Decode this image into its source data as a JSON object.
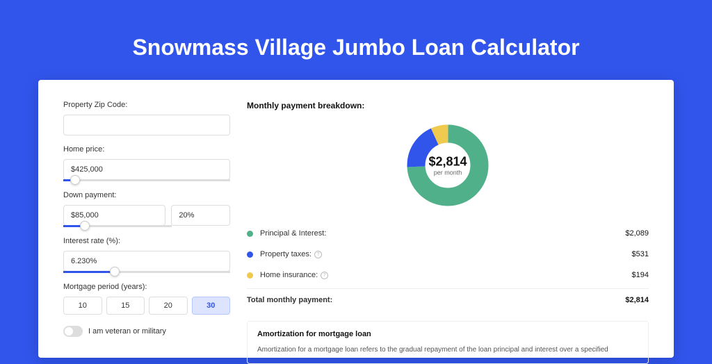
{
  "title": "Snowmass Village Jumbo Loan Calculator",
  "colors": {
    "background": "#3154eb",
    "panel": "#ffffff",
    "text": "#333333",
    "accent": "#3154eb",
    "principal": "#4fb08a",
    "taxes": "#3154eb",
    "insurance": "#f0c94f"
  },
  "form": {
    "zip_label": "Property Zip Code:",
    "zip_value": "",
    "price_label": "Home price:",
    "price_value": "$425,000",
    "price_slider_pct": 7,
    "down_label": "Down payment:",
    "down_value": "$85,000",
    "down_pct": "20%",
    "down_slider_pct": 20,
    "rate_label": "Interest rate (%):",
    "rate_value": "6.230%",
    "rate_slider_pct": 31,
    "period_label": "Mortgage period (years):",
    "periods": [
      "10",
      "15",
      "20",
      "30"
    ],
    "period_active_index": 3,
    "veteran_label": "I am veteran or military",
    "veteran_on": false
  },
  "breakdown": {
    "title": "Monthly payment breakdown:",
    "center_amount": "$2,814",
    "center_label": "per month",
    "donut": {
      "slices": [
        {
          "color": "#4fb08a",
          "value": 2089
        },
        {
          "color": "#3154eb",
          "value": 531
        },
        {
          "color": "#f0c94f",
          "value": 194
        }
      ],
      "stroke_width": 20
    },
    "items": [
      {
        "label": "Principal & Interest:",
        "value": "$2,089",
        "color": "#4fb08a",
        "info": false
      },
      {
        "label": "Property taxes:",
        "value": "$531",
        "color": "#3154eb",
        "info": true
      },
      {
        "label": "Home insurance:",
        "value": "$194",
        "color": "#f0c94f",
        "info": true
      }
    ],
    "total_label": "Total monthly payment:",
    "total_value": "$2,814"
  },
  "amortization": {
    "title": "Amortization for mortgage loan",
    "body": "Amortization for a mortgage loan refers to the gradual repayment of the loan principal and interest over a specified"
  }
}
